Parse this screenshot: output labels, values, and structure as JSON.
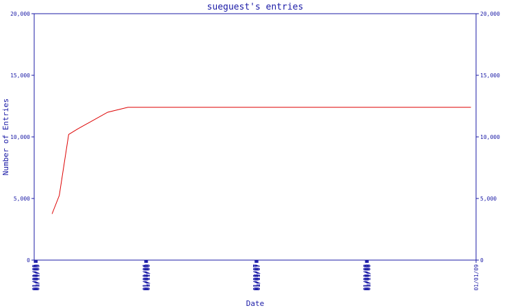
{
  "chart_data": {
    "type": "line",
    "title": "sueguest's entries",
    "xlabel": "Date",
    "ylabel": "Number of Entries",
    "ylim": [
      0,
      20000
    ],
    "y_ticks": [
      {
        "value": 0,
        "label": "0"
      },
      {
        "value": 5000,
        "label": "5,000"
      },
      {
        "value": 10000,
        "label": "10,000"
      },
      {
        "value": 15000,
        "label": "15,000"
      },
      {
        "value": 20000,
        "label": "20,000"
      }
    ],
    "x_ticks": [
      "01/01/05",
      "01/03/05",
      "01/05/05",
      "01/07/05",
      "01/09/05",
      "01/11/05",
      "01/01/06",
      "01/03/06",
      "01/05/06",
      "01/07/06",
      "01/09/06",
      "01/11/06",
      "01/01/07",
      "01/03/07",
      "01/05/07",
      "01/07/07",
      "01/09/07",
      "01/11/07",
      "01/01/08",
      "01/03/08",
      "01/05/08",
      "01/07/08",
      "01/09/08",
      "01/11/08",
      "01/01/09"
    ],
    "xlim": [
      "01/01/05",
      "01/01/09"
    ],
    "grid": false,
    "series": [
      {
        "color": "#dd0000",
        "points": [
          {
            "x": "2005-03-01",
            "y": 3750
          },
          {
            "x": "2005-03-25",
            "y": 5250
          },
          {
            "x": "2005-04-25",
            "y": 10200
          },
          {
            "x": "2005-05-25",
            "y": 10650
          },
          {
            "x": "2005-09-01",
            "y": 12000
          },
          {
            "x": "2005-11-07",
            "y": 12400
          },
          {
            "x": "2008-12-15",
            "y": 12400
          }
        ]
      }
    ]
  },
  "colors": {
    "axis": "#1a1aa6",
    "line": "#dd0000",
    "background": "#ffffff"
  }
}
